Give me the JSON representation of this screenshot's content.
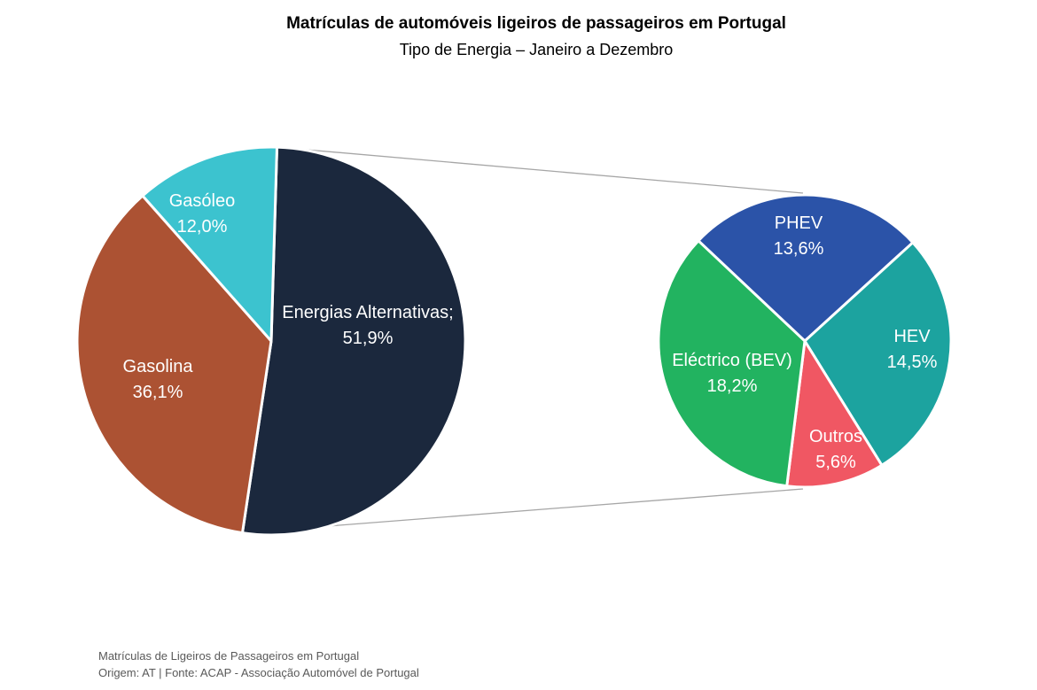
{
  "chart_data": {
    "type": "pie",
    "title": "Matrículas de automóveis ligeiros de passageiros em Portugal",
    "subtitle": "Tipo de Energia – Janeiro a Dezembro",
    "main_pie": [
      {
        "name": "Energias Alternativas;",
        "value": 51.9,
        "label": "51,9%",
        "color": "#1b283d"
      },
      {
        "name": "Gasolina",
        "value": 36.1,
        "label": "36,1%",
        "color": "#ac5233"
      },
      {
        "name": "Gasóleo",
        "value": 12.0,
        "label": "12,0%",
        "color": "#3cc3cf"
      }
    ],
    "breakdown_of": "Energias Alternativas;",
    "breakdown_pie": [
      {
        "name": "PHEV",
        "value": 13.6,
        "label": "13,6%",
        "color": "#2b53a8"
      },
      {
        "name": "HEV",
        "value": 14.5,
        "label": "14,5%",
        "color": "#1ca39f"
      },
      {
        "name": "Outros",
        "value": 5.6,
        "label": "5,6%",
        "color": "#f05763"
      },
      {
        "name": "Eléctrico (BEV)",
        "value": 18.2,
        "label": "18,2%",
        "color": "#22b360"
      }
    ]
  },
  "footer": {
    "line1": "Matrículas de Ligeiros de Passageiros em Portugal",
    "line2": "Origem: AT | Fonte: ACAP - Associação Automóvel de Portugal"
  }
}
